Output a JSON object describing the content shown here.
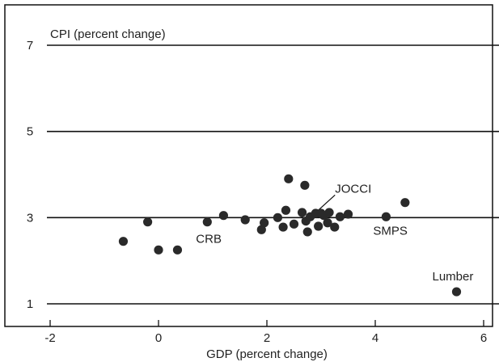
{
  "chart_data": {
    "type": "scatter",
    "title": "",
    "xlabel": "GDP (percent change)",
    "ylabel": "CPI (percent change)",
    "xlim": [
      -2,
      6
    ],
    "ylim": [
      1,
      7
    ],
    "xticks": [
      -2,
      0,
      2,
      4,
      6
    ],
    "yticks": [
      1,
      3,
      5,
      7
    ],
    "grid": "horizontal lines at y ticks",
    "points": [
      {
        "x": -0.65,
        "y": 2.45
      },
      {
        "x": -0.2,
        "y": 2.9
      },
      {
        "x": 0.0,
        "y": 2.25
      },
      {
        "x": 0.35,
        "y": 2.25
      },
      {
        "x": 0.9,
        "y": 2.9
      },
      {
        "x": 1.2,
        "y": 3.05
      },
      {
        "x": 1.6,
        "y": 2.95
      },
      {
        "x": 1.9,
        "y": 2.72
      },
      {
        "x": 1.95,
        "y": 2.88
      },
      {
        "x": 2.2,
        "y": 3.0
      },
      {
        "x": 2.3,
        "y": 2.78
      },
      {
        "x": 2.35,
        "y": 3.17
      },
      {
        "x": 2.4,
        "y": 3.9
      },
      {
        "x": 2.5,
        "y": 2.85
      },
      {
        "x": 2.65,
        "y": 3.12
      },
      {
        "x": 2.7,
        "y": 3.75
      },
      {
        "x": 2.72,
        "y": 2.92
      },
      {
        "x": 2.75,
        "y": 2.67
      },
      {
        "x": 2.8,
        "y": 3.02
      },
      {
        "x": 2.9,
        "y": 3.1
      },
      {
        "x": 2.95,
        "y": 2.8
      },
      {
        "x": 3.0,
        "y": 3.1
      },
      {
        "x": 3.05,
        "y": 3.05
      },
      {
        "x": 3.12,
        "y": 2.88
      },
      {
        "x": 3.15,
        "y": 3.12
      },
      {
        "x": 3.25,
        "y": 2.78
      },
      {
        "x": 3.35,
        "y": 3.02
      },
      {
        "x": 3.5,
        "y": 3.08
      },
      {
        "x": 4.2,
        "y": 3.02,
        "label": "SMPS"
      },
      {
        "x": 4.55,
        "y": 3.35
      },
      {
        "x": 5.5,
        "y": 1.28,
        "label": "Lumber"
      }
    ],
    "annotations": [
      {
        "text": "CRB",
        "x": 0.9,
        "y": 2.9
      },
      {
        "text": "JOCCI",
        "x": 2.78,
        "y": 3.0
      }
    ]
  }
}
